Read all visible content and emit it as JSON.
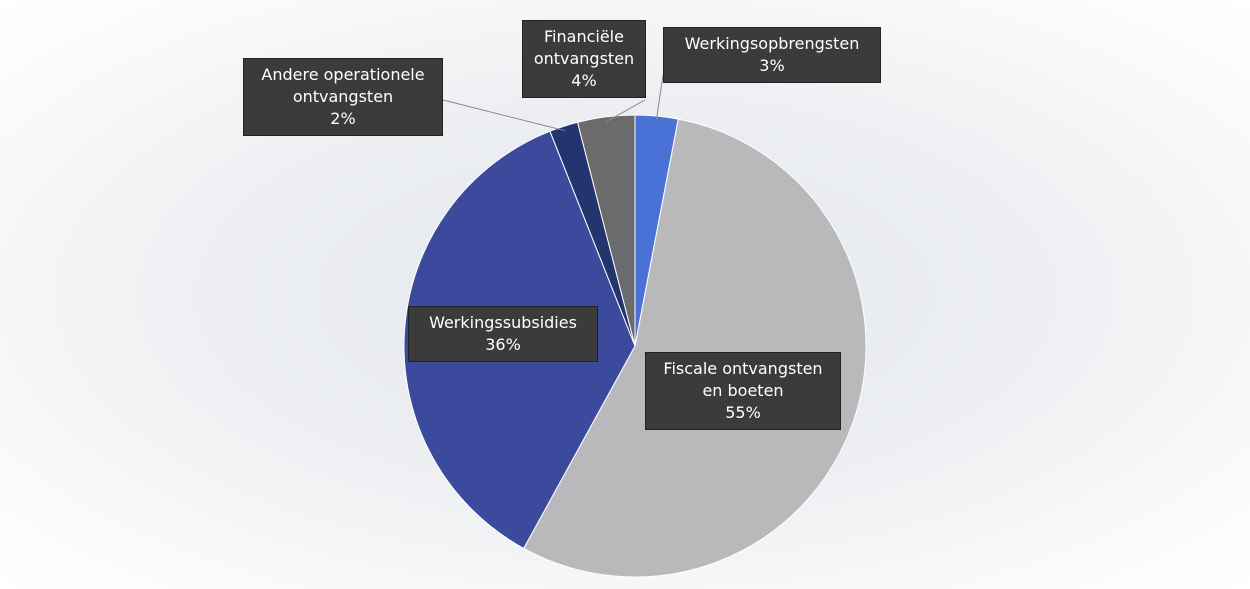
{
  "chart_data": {
    "type": "pie",
    "categories": [
      "Werkingsopbrengsten",
      "Fiscale ontvangsten en boeten",
      "Werkingssubsidies",
      "Andere operationele ontvangsten",
      "Financiële ontvangsten"
    ],
    "values": [
      3,
      55,
      36,
      2,
      4
    ],
    "value_labels": [
      "3%",
      "55%",
      "36%",
      "2%",
      "4%"
    ],
    "colors": [
      "#4a72d6",
      "#b9b9bb",
      "#3b4a9c",
      "#24346f",
      "#6b6b6d"
    ]
  }
}
